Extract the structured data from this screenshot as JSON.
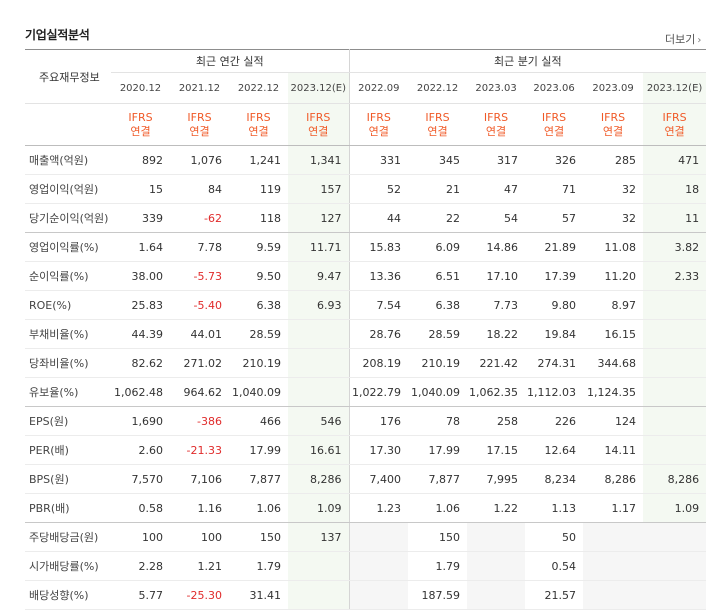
{
  "title": "기업실적분석",
  "more_label": "더보기",
  "row_header": "주요재무정보",
  "groups": {
    "annual": "최근 연간 실적",
    "quarterly": "최근 분기 실적"
  },
  "periods": [
    "2020.12",
    "2021.12",
    "2022.12",
    "2023.12(E)",
    "2022.09",
    "2022.12",
    "2023.03",
    "2023.06",
    "2023.09",
    "2023.12(E)"
  ],
  "ifrs_line1": "IFRS",
  "ifrs_line2": "연결",
  "colors": {
    "accent_orange": "#f05a28",
    "negative_red": "#e02b2b",
    "estimate_bg": "#f4f9f2"
  },
  "rows": [
    {
      "label": "매출액(억원)",
      "values": [
        "892",
        "1,076",
        "1,241",
        "1,341",
        "331",
        "345",
        "317",
        "326",
        "285",
        "471"
      ]
    },
    {
      "label": "영업이익(억원)",
      "values": [
        "15",
        "84",
        "119",
        "157",
        "52",
        "21",
        "47",
        "71",
        "32",
        "18"
      ]
    },
    {
      "label": "당기순이익(억원)",
      "values": [
        "339",
        "-62",
        "118",
        "127",
        "44",
        "22",
        "54",
        "57",
        "32",
        "11"
      ]
    },
    {
      "label": "영업이익률(%)",
      "values": [
        "1.64",
        "7.78",
        "9.59",
        "11.71",
        "15.83",
        "6.09",
        "14.86",
        "21.89",
        "11.08",
        "3.82"
      ]
    },
    {
      "label": "순이익률(%)",
      "values": [
        "38.00",
        "-5.73",
        "9.50",
        "9.47",
        "13.36",
        "6.51",
        "17.10",
        "17.39",
        "11.20",
        "2.33"
      ]
    },
    {
      "label": "ROE(%)",
      "values": [
        "25.83",
        "-5.40",
        "6.38",
        "6.93",
        "7.54",
        "6.38",
        "7.73",
        "9.80",
        "8.97",
        ""
      ]
    },
    {
      "label": "부채비율(%)",
      "values": [
        "44.39",
        "44.01",
        "28.59",
        "",
        "28.76",
        "28.59",
        "18.22",
        "19.84",
        "16.15",
        ""
      ]
    },
    {
      "label": "당좌비율(%)",
      "values": [
        "82.62",
        "271.02",
        "210.19",
        "",
        "208.19",
        "210.19",
        "221.42",
        "274.31",
        "344.68",
        ""
      ]
    },
    {
      "label": "유보율(%)",
      "values": [
        "1,062.48",
        "964.62",
        "1,040.09",
        "",
        "1,022.79",
        "1,040.09",
        "1,062.35",
        "1,112.03",
        "1,124.35",
        ""
      ]
    },
    {
      "label": "EPS(원)",
      "values": [
        "1,690",
        "-386",
        "466",
        "546",
        "176",
        "78",
        "258",
        "226",
        "124",
        ""
      ]
    },
    {
      "label": "PER(배)",
      "values": [
        "2.60",
        "-21.33",
        "17.99",
        "16.61",
        "17.30",
        "17.99",
        "17.15",
        "12.64",
        "14.11",
        ""
      ]
    },
    {
      "label": "BPS(원)",
      "values": [
        "7,570",
        "7,106",
        "7,877",
        "8,286",
        "7,400",
        "7,877",
        "7,995",
        "8,234",
        "8,286",
        "8,286"
      ]
    },
    {
      "label": "PBR(배)",
      "values": [
        "0.58",
        "1.16",
        "1.06",
        "1.09",
        "1.23",
        "1.06",
        "1.22",
        "1.13",
        "1.17",
        "1.09"
      ]
    },
    {
      "label": "주당배당금(원)",
      "values": [
        "100",
        "100",
        "150",
        "137",
        "",
        "150",
        "",
        "50",
        "",
        ""
      ]
    },
    {
      "label": "시가배당률(%)",
      "values": [
        "2.28",
        "1.21",
        "1.79",
        "",
        "",
        "1.79",
        "",
        "0.54",
        "",
        ""
      ]
    },
    {
      "label": "배당성향(%)",
      "values": [
        "5.77",
        "-25.30",
        "31.41",
        "",
        "",
        "187.59",
        "",
        "21.57",
        "",
        ""
      ]
    }
  ]
}
